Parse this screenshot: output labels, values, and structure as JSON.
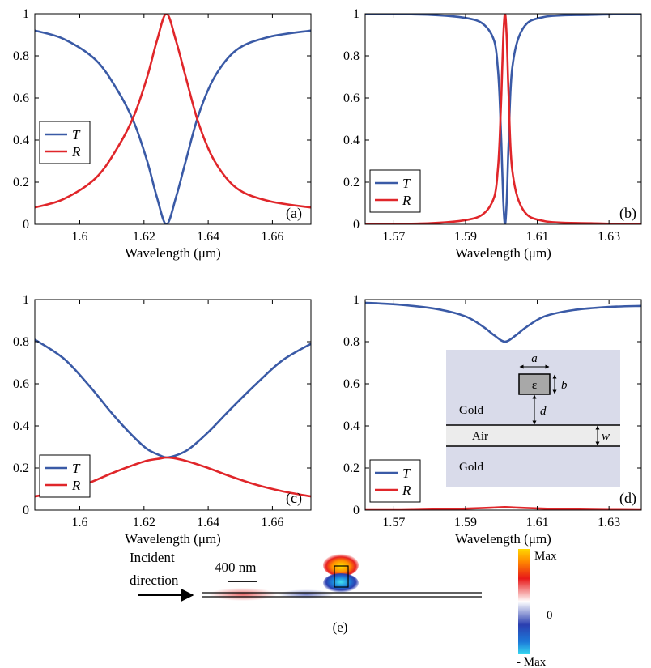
{
  "colors": {
    "T": "#3a5aa6",
    "R": "#e0262a"
  },
  "chart_data": [
    {
      "panel_label": "(a)",
      "type": "line",
      "xlabel": "Wavelength (μm)",
      "xlim": [
        1.586,
        1.672
      ],
      "ylim": [
        0,
        1
      ],
      "xticks": [
        1.6,
        1.62,
        1.64,
        1.66
      ],
      "xtick_labels": [
        "1.6",
        "1.62",
        "1.64",
        "1.66"
      ],
      "yticks": [
        0,
        0.2,
        0.4,
        0.6,
        0.8,
        1
      ],
      "ytick_labels": [
        "0",
        "0.2",
        "0.4",
        "0.6",
        "0.8",
        "1"
      ],
      "legend": {
        "position": "middle-left",
        "entries": [
          "T",
          "R"
        ]
      },
      "grid": false,
      "x": [
        1.586,
        1.595,
        1.605,
        1.612,
        1.617,
        1.621,
        1.624,
        1.627,
        1.63,
        1.633,
        1.637,
        1.642,
        1.649,
        1.659,
        1.672
      ],
      "series": [
        {
          "name": "T",
          "values": [
            0.92,
            0.88,
            0.78,
            0.63,
            0.48,
            0.3,
            0.13,
            0.0,
            0.13,
            0.3,
            0.52,
            0.7,
            0.83,
            0.89,
            0.92
          ]
        },
        {
          "name": "R",
          "values": [
            0.08,
            0.12,
            0.22,
            0.37,
            0.52,
            0.7,
            0.87,
            1.0,
            0.87,
            0.7,
            0.48,
            0.3,
            0.17,
            0.11,
            0.08
          ]
        }
      ]
    },
    {
      "panel_label": "(b)",
      "type": "line",
      "xlabel": "Wavelength (μm)",
      "xlim": [
        1.562,
        1.639
      ],
      "ylim": [
        0,
        1
      ],
      "xticks": [
        1.57,
        1.59,
        1.61,
        1.63
      ],
      "xtick_labels": [
        "1.57",
        "1.59",
        "1.61",
        "1.63"
      ],
      "yticks": [
        0,
        0.2,
        0.4,
        0.6,
        0.8,
        1
      ],
      "ytick_labels": [
        "0",
        "0.2",
        "0.4",
        "0.6",
        "0.8",
        "1"
      ],
      "legend": {
        "position": "bottom-left",
        "entries": [
          "T",
          "R"
        ]
      },
      "grid": false,
      "x": [
        1.562,
        1.58,
        1.59,
        1.595,
        1.598,
        1.599,
        1.5995,
        1.6,
        1.6005,
        1.601,
        1.6015,
        1.602,
        1.603,
        1.606,
        1.612,
        1.625,
        1.639
      ],
      "series": [
        {
          "name": "T",
          "values": [
            1.0,
            0.995,
            0.98,
            0.95,
            0.87,
            0.74,
            0.6,
            0.38,
            0.12,
            0.0,
            0.12,
            0.38,
            0.74,
            0.93,
            0.985,
            0.995,
            1.0
          ]
        },
        {
          "name": "R",
          "values": [
            0.0,
            0.005,
            0.02,
            0.05,
            0.13,
            0.26,
            0.4,
            0.62,
            0.88,
            1.0,
            0.88,
            0.62,
            0.26,
            0.07,
            0.015,
            0.005,
            0.0
          ]
        }
      ]
    },
    {
      "panel_label": "(c)",
      "type": "line",
      "xlabel": "Wavelength (μm)",
      "xlim": [
        1.586,
        1.672
      ],
      "ylim": [
        0,
        1
      ],
      "xticks": [
        1.6,
        1.62,
        1.64,
        1.66
      ],
      "xtick_labels": [
        "1.6",
        "1.62",
        "1.64",
        "1.66"
      ],
      "yticks": [
        0,
        0.2,
        0.4,
        0.6,
        0.8,
        1
      ],
      "ytick_labels": [
        "0",
        "0.2",
        "0.4",
        "0.6",
        "0.8",
        "1"
      ],
      "legend": {
        "position": "bottom-left",
        "entries": [
          "T",
          "R"
        ]
      },
      "grid": false,
      "x": [
        1.586,
        1.595,
        1.603,
        1.61,
        1.616,
        1.621,
        1.625,
        1.627,
        1.63,
        1.634,
        1.64,
        1.647,
        1.655,
        1.663,
        1.672
      ],
      "series": [
        {
          "name": "T",
          "values": [
            0.81,
            0.72,
            0.59,
            0.46,
            0.36,
            0.29,
            0.26,
            0.25,
            0.26,
            0.29,
            0.37,
            0.48,
            0.6,
            0.71,
            0.79
          ]
        },
        {
          "name": "R",
          "values": [
            0.065,
            0.09,
            0.13,
            0.175,
            0.21,
            0.235,
            0.245,
            0.25,
            0.245,
            0.23,
            0.2,
            0.16,
            0.12,
            0.09,
            0.065
          ]
        }
      ]
    },
    {
      "panel_label": "(d)",
      "type": "line",
      "xlabel": "Wavelength (μm)",
      "xlim": [
        1.562,
        1.639
      ],
      "ylim": [
        0,
        1
      ],
      "xticks": [
        1.57,
        1.59,
        1.61,
        1.63
      ],
      "xtick_labels": [
        "1.57",
        "1.59",
        "1.61",
        "1.63"
      ],
      "yticks": [
        0,
        0.2,
        0.4,
        0.6,
        0.8,
        1
      ],
      "ytick_labels": [
        "0",
        "0.2",
        "0.4",
        "0.6",
        "0.8",
        "1"
      ],
      "legend": {
        "position": "bottom-left",
        "entries": [
          "T",
          "R"
        ]
      },
      "grid": false,
      "x": [
        1.562,
        1.572,
        1.582,
        1.59,
        1.595,
        1.598,
        1.601,
        1.604,
        1.607,
        1.612,
        1.62,
        1.63,
        1.639
      ],
      "series": [
        {
          "name": "T",
          "values": [
            0.985,
            0.975,
            0.955,
            0.92,
            0.87,
            0.83,
            0.8,
            0.83,
            0.87,
            0.92,
            0.95,
            0.965,
            0.97
          ]
        },
        {
          "name": "R",
          "values": [
            0.0,
            0.0,
            0.003,
            0.007,
            0.01,
            0.012,
            0.014,
            0.012,
            0.01,
            0.007,
            0.003,
            0.001,
            0.0
          ]
        }
      ]
    }
  ],
  "inset": {
    "labels": {
      "gold_top": "Gold",
      "air": "Air",
      "gold_bottom": "Gold",
      "epsilon": "ε",
      "a": "a",
      "b": "b",
      "d": "d",
      "w": "w"
    }
  },
  "panel_e": {
    "label": "(e)",
    "incident_line1": "Incident",
    "incident_line2": "direction",
    "scale_bar": "400 nm",
    "colorbar": {
      "max": "Max",
      "zero": "0",
      "min": "- Max"
    }
  }
}
